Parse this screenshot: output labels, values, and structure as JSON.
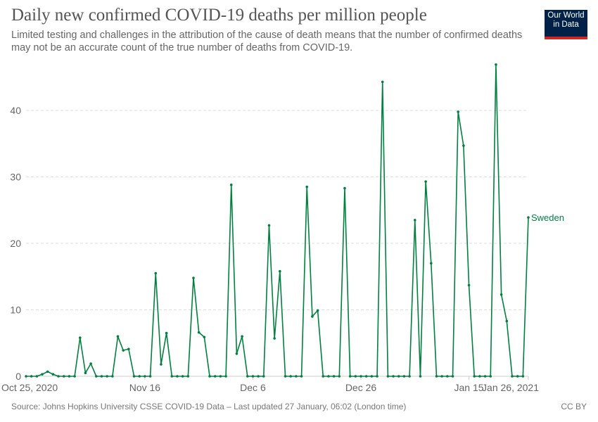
{
  "header": {
    "title": "Daily new confirmed COVID-19 deaths per million people",
    "subtitle": "Limited testing and challenges in the attribution of the cause of death means that the number of confirmed deaths may not be an accurate count of the true number of deaths from COVID-19.",
    "logo_text": "Our World in Data"
  },
  "footer": {
    "source": "Source: Johns Hopkins University CSSE COVID-19 Data – Last updated 27 January, 06:02 (London time)",
    "license": "CC BY"
  },
  "colors": {
    "series": "#00813f",
    "logo_bg": "#002147",
    "logo_accent": "#ce261e"
  },
  "chart_data": {
    "type": "line",
    "title": "Daily new confirmed COVID-19 deaths per million people",
    "x_start": "2020-10-25",
    "x_frequency": "daily",
    "x_ticks": [
      "Oct 25, 2020",
      "Nov 16",
      "Dec 6",
      "Dec 26",
      "Jan 15",
      "Jan 26, 2021"
    ],
    "x_tick_days": [
      0,
      22,
      42,
      62,
      82,
      93
    ],
    "y_ticks": [
      0,
      10,
      20,
      30,
      40
    ],
    "ylim": [
      0,
      40
    ],
    "grid": true,
    "series": [
      {
        "name": "Sweden",
        "values": [
          0,
          0,
          0,
          0.3,
          0.7,
          0.3,
          0,
          0,
          0,
          0,
          5.8,
          0.5,
          1.9,
          0,
          0,
          0,
          0,
          6.0,
          3.9,
          4.1,
          0,
          0,
          0,
          0,
          15.5,
          1.8,
          6.5,
          0,
          0,
          0,
          0,
          14.8,
          6.6,
          5.9,
          0,
          0,
          0,
          0,
          28.8,
          3.4,
          6.0,
          0,
          0,
          0,
          0,
          22.7,
          5.7,
          15.8,
          0,
          0,
          0,
          0,
          28.5,
          9.0,
          9.9,
          0,
          0,
          0,
          0,
          28.3,
          0,
          0,
          0,
          0,
          0,
          0,
          44.3,
          0,
          0,
          0,
          0,
          0,
          23.5,
          0,
          29.3,
          17.0,
          0,
          0,
          0,
          0,
          39.8,
          34.7,
          13.7,
          0,
          0,
          0,
          0,
          46.9,
          12.3,
          8.3,
          0,
          0,
          0,
          23.9
        ]
      }
    ]
  }
}
